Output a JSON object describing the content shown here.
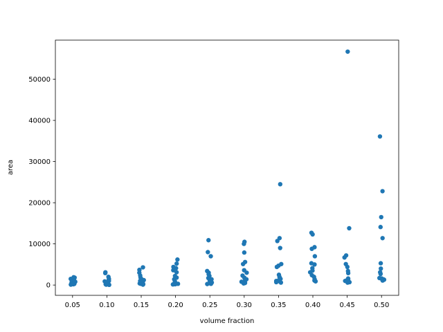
{
  "chart_data": {
    "type": "scatter",
    "title": "",
    "xlabel": "volume fraction",
    "ylabel": "area",
    "categories": [
      "0.05",
      "0.10",
      "0.15",
      "0.20",
      "0.25",
      "0.30",
      "0.35",
      "0.40",
      "0.45",
      "0.50"
    ],
    "y_ticks": [
      "0",
      "10000",
      "20000",
      "30000",
      "40000",
      "50000"
    ],
    "ylim": [
      -2500,
      59500
    ],
    "grid": false,
    "marker_color": "#1f77b4",
    "series": [
      {
        "points": [
          [
            "0.05",
            200
          ],
          [
            "0.05",
            400
          ],
          [
            "0.05",
            600
          ],
          [
            "0.05",
            800
          ],
          [
            "0.05",
            1000
          ],
          [
            "0.05",
            1200
          ],
          [
            "0.05",
            1500
          ],
          [
            "0.05",
            1800
          ],
          [
            "0.05",
            1900
          ],
          [
            "0.05",
            300
          ],
          [
            "0.05",
            500
          ],
          [
            "0.05",
            700
          ],
          [
            "0.05",
            1100
          ],
          [
            "0.05",
            100
          ],
          [
            "0.05",
            250
          ],
          [
            "0.10",
            3100
          ],
          [
            "0.10",
            2900
          ],
          [
            "0.10",
            2000
          ],
          [
            "0.10",
            1500
          ],
          [
            "0.10",
            1200
          ],
          [
            "0.10",
            900
          ],
          [
            "0.10",
            600
          ],
          [
            "0.10",
            400
          ],
          [
            "0.10",
            300
          ],
          [
            "0.10",
            200
          ],
          [
            "0.10",
            100
          ],
          [
            "0.10",
            50
          ],
          [
            "0.10",
            1000
          ],
          [
            "0.10",
            700
          ],
          [
            "0.10",
            150
          ],
          [
            "0.15",
            4300
          ],
          [
            "0.15",
            3700
          ],
          [
            "0.15",
            3000
          ],
          [
            "0.15",
            2300
          ],
          [
            "0.15",
            1800
          ],
          [
            "0.15",
            1500
          ],
          [
            "0.15",
            1200
          ],
          [
            "0.15",
            900
          ],
          [
            "0.15",
            600
          ],
          [
            "0.15",
            400
          ],
          [
            "0.15",
            300
          ],
          [
            "0.15",
            200
          ],
          [
            "0.15",
            100
          ],
          [
            "0.15",
            1000
          ],
          [
            "0.15",
            700
          ],
          [
            "0.20",
            6200
          ],
          [
            "0.20",
            5200
          ],
          [
            "0.20",
            4400
          ],
          [
            "0.20",
            4100
          ],
          [
            "0.20",
            3600
          ],
          [
            "0.20",
            3100
          ],
          [
            "0.20",
            2200
          ],
          [
            "0.20",
            1800
          ],
          [
            "0.20",
            1400
          ],
          [
            "0.20",
            900
          ],
          [
            "0.20",
            600
          ],
          [
            "0.20",
            400
          ],
          [
            "0.20",
            300
          ],
          [
            "0.20",
            200
          ],
          [
            "0.20",
            150
          ],
          [
            "0.25",
            10900
          ],
          [
            "0.25",
            8000
          ],
          [
            "0.25",
            7000
          ],
          [
            "0.25",
            3400
          ],
          [
            "0.25",
            3000
          ],
          [
            "0.25",
            2600
          ],
          [
            "0.25",
            2200
          ],
          [
            "0.25",
            1700
          ],
          [
            "0.25",
            1400
          ],
          [
            "0.25",
            1100
          ],
          [
            "0.25",
            800
          ],
          [
            "0.25",
            600
          ],
          [
            "0.25",
            400
          ],
          [
            "0.25",
            300
          ],
          [
            "0.25",
            250
          ],
          [
            "0.30",
            10500
          ],
          [
            "0.30",
            10000
          ],
          [
            "0.30",
            7900
          ],
          [
            "0.30",
            5600
          ],
          [
            "0.30",
            5100
          ],
          [
            "0.30",
            3600
          ],
          [
            "0.30",
            3000
          ],
          [
            "0.30",
            2300
          ],
          [
            "0.30",
            1800
          ],
          [
            "0.30",
            1400
          ],
          [
            "0.30",
            1000
          ],
          [
            "0.30",
            800
          ],
          [
            "0.30",
            600
          ],
          [
            "0.30",
            500
          ],
          [
            "0.30",
            400
          ],
          [
            "0.35",
            24500
          ],
          [
            "0.35",
            11400
          ],
          [
            "0.35",
            10700
          ],
          [
            "0.35",
            9000
          ],
          [
            "0.35",
            5100
          ],
          [
            "0.35",
            4700
          ],
          [
            "0.35",
            4400
          ],
          [
            "0.35",
            2500
          ],
          [
            "0.35",
            2000
          ],
          [
            "0.35",
            1500
          ],
          [
            "0.35",
            1200
          ],
          [
            "0.35",
            900
          ],
          [
            "0.35",
            700
          ],
          [
            "0.35",
            600
          ],
          [
            "0.35",
            1000
          ],
          [
            "0.40",
            12700
          ],
          [
            "0.40",
            12300
          ],
          [
            "0.40",
            9200
          ],
          [
            "0.40",
            8800
          ],
          [
            "0.40",
            7000
          ],
          [
            "0.40",
            5300
          ],
          [
            "0.40",
            5000
          ],
          [
            "0.40",
            4100
          ],
          [
            "0.40",
            3500
          ],
          [
            "0.40",
            3100
          ],
          [
            "0.40",
            2400
          ],
          [
            "0.40",
            2000
          ],
          [
            "0.40",
            1400
          ],
          [
            "0.40",
            1100
          ],
          [
            "0.40",
            900
          ],
          [
            "0.45",
            56700
          ],
          [
            "0.45",
            13800
          ],
          [
            "0.45",
            7200
          ],
          [
            "0.45",
            6700
          ],
          [
            "0.45",
            5100
          ],
          [
            "0.45",
            4400
          ],
          [
            "0.45",
            3400
          ],
          [
            "0.45",
            2900
          ],
          [
            "0.45",
            1600
          ],
          [
            "0.45",
            1200
          ],
          [
            "0.45",
            900
          ],
          [
            "0.45",
            700
          ],
          [
            "0.45",
            1400
          ],
          [
            "0.45",
            1000
          ],
          [
            "0.45",
            600
          ],
          [
            "0.50",
            36100
          ],
          [
            "0.50",
            22800
          ],
          [
            "0.50",
            16500
          ],
          [
            "0.50",
            14100
          ],
          [
            "0.50",
            11400
          ],
          [
            "0.50",
            5300
          ],
          [
            "0.50",
            4000
          ],
          [
            "0.50",
            3100
          ],
          [
            "0.50",
            2700
          ],
          [
            "0.50",
            1700
          ],
          [
            "0.50",
            1500
          ],
          [
            "0.50",
            1300
          ],
          [
            "0.50",
            1100
          ],
          [
            "0.50",
            1600
          ],
          [
            "0.50",
            1400
          ]
        ]
      }
    ]
  }
}
